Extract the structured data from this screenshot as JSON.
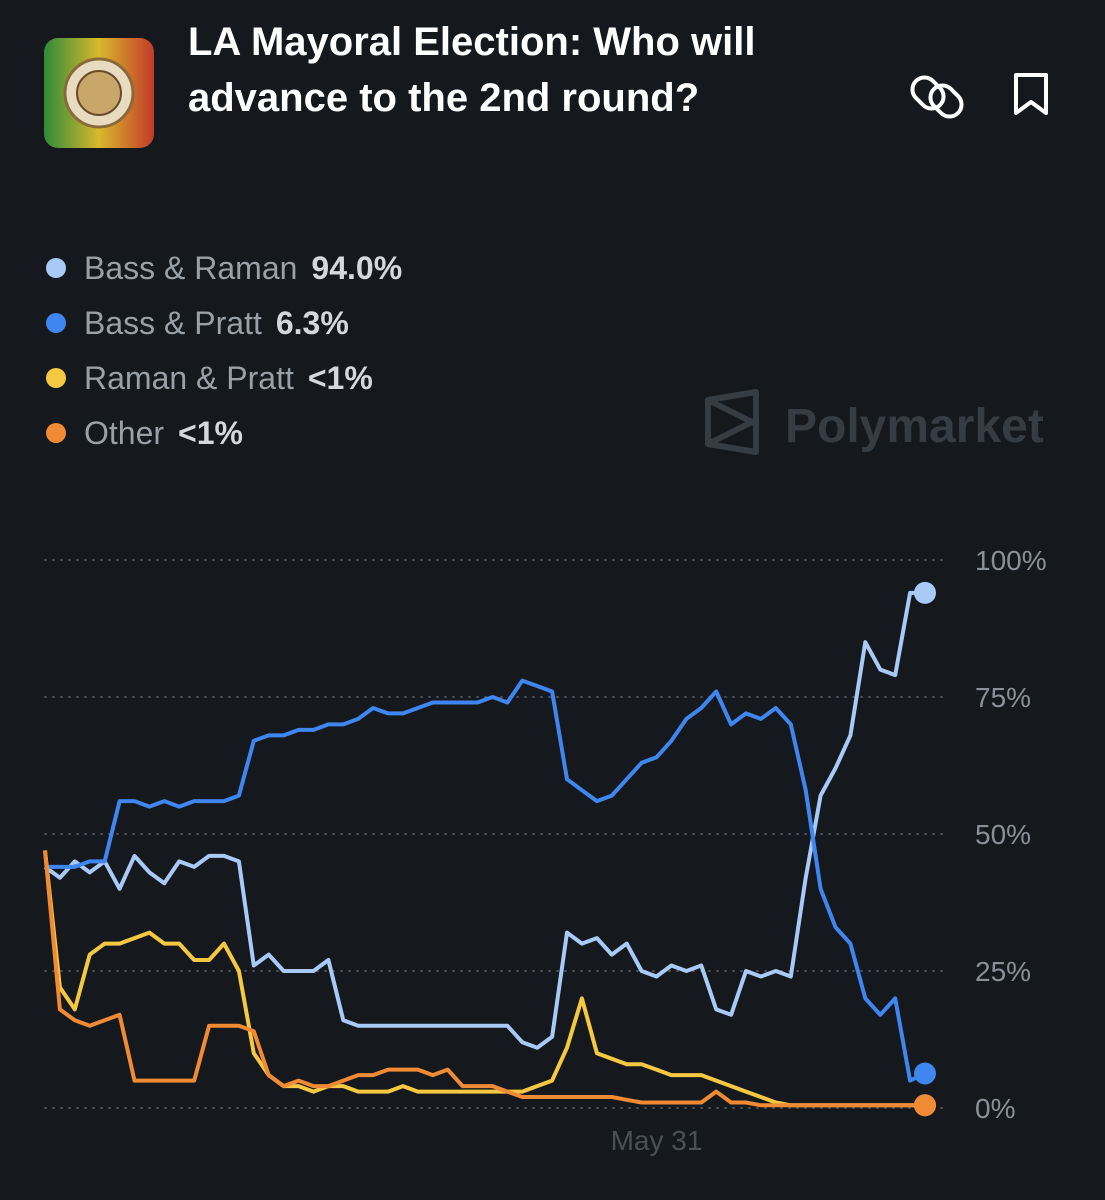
{
  "chart_data": {
    "type": "line",
    "title": "LA Mayoral Election: Who will advance to the 2nd round?",
    "watermark": "Polymarket",
    "categories": [
      null,
      null,
      null,
      null,
      null,
      null,
      null,
      null,
      null,
      null,
      null,
      null,
      null,
      null,
      null,
      null,
      null,
      null,
      null,
      null,
      null,
      null,
      null,
      null,
      null,
      null,
      null,
      null,
      null,
      null,
      null,
      null,
      null,
      null,
      null,
      null,
      null,
      null,
      null,
      null,
      null,
      "May 31",
      null,
      null,
      null,
      null,
      null,
      null,
      null,
      null,
      null,
      null,
      null,
      null,
      null,
      null,
      null,
      null,
      null,
      null
    ],
    "ylim": [
      0,
      100
    ],
    "yticks": [
      {
        "value": 0,
        "label": "0%"
      },
      {
        "value": 25,
        "label": "25%"
      },
      {
        "value": 50,
        "label": "50%"
      },
      {
        "value": 75,
        "label": "75%"
      },
      {
        "value": 100,
        "label": "100%"
      }
    ],
    "grid": true,
    "series": [
      {
        "name": "Bass & Raman",
        "legend_label": "94.0%",
        "color": "#a9c9f7",
        "values": [
          44,
          42,
          45,
          43,
          45,
          40,
          46,
          43,
          41,
          45,
          44,
          46,
          46,
          45,
          26,
          28,
          25,
          25,
          25,
          27,
          16,
          15,
          15,
          15,
          15,
          15,
          15,
          15,
          15,
          15,
          15,
          15,
          12,
          11,
          13,
          32,
          30,
          31,
          28,
          30,
          25,
          24,
          26,
          25,
          26,
          18,
          17,
          25,
          24,
          25,
          24,
          42,
          57,
          62,
          68,
          85,
          80,
          79,
          94,
          94.0
        ]
      },
      {
        "name": "Bass & Pratt",
        "legend_label": "6.3%",
        "color": "#3f86f0",
        "values": [
          44,
          44,
          44,
          45,
          45,
          56,
          56,
          55,
          56,
          55,
          56,
          56,
          56,
          57,
          67,
          68,
          68,
          69,
          69,
          70,
          70,
          71,
          73,
          72,
          72,
          73,
          74,
          74,
          74,
          74,
          75,
          74,
          78,
          77,
          76,
          60,
          58,
          56,
          57,
          60,
          63,
          64,
          67,
          71,
          73,
          76,
          70,
          72,
          71,
          73,
          70,
          58,
          40,
          33,
          30,
          20,
          17,
          20,
          5,
          6.3
        ]
      },
      {
        "name": "Raman & Pratt",
        "legend_label": "<1%",
        "color": "#f5c842",
        "values": [
          47,
          22,
          18,
          28,
          30,
          30,
          31,
          32,
          30,
          30,
          27,
          27,
          30,
          25,
          10,
          6,
          4,
          4,
          3,
          4,
          4,
          3,
          3,
          3,
          4,
          3,
          3,
          3,
          3,
          3,
          3,
          3,
          3,
          4,
          5,
          11,
          20,
          10,
          9,
          8,
          8,
          7,
          6,
          6,
          6,
          5,
          4,
          3,
          2,
          1,
          0.5,
          0.5,
          0.5,
          0.5,
          0.5,
          0.5,
          0.5,
          0.5,
          0.5,
          0.5
        ]
      },
      {
        "name": "Other",
        "legend_label": "<1%",
        "color": "#f08a35",
        "values": [
          47,
          18,
          16,
          15,
          16,
          17,
          5,
          5,
          5,
          5,
          5,
          15,
          15,
          15,
          14,
          6,
          4,
          5,
          4,
          4,
          5,
          6,
          6,
          7,
          7,
          7,
          6,
          7,
          4,
          4,
          4,
          3,
          2,
          2,
          2,
          2,
          2,
          2,
          2,
          1.5,
          1,
          1,
          1,
          1,
          1,
          3,
          1,
          1,
          0.5,
          0.5,
          0.5,
          0.5,
          0.5,
          0.5,
          0.5,
          0.5,
          0.5,
          0.5,
          0.5,
          0.5
        ]
      }
    ]
  }
}
